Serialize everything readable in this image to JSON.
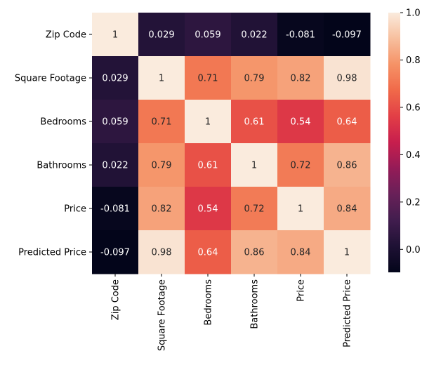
{
  "chart_data": {
    "type": "heatmap",
    "title": "",
    "rows": [
      "Zip Code",
      "Square Footage",
      "Bedrooms",
      "Bathrooms",
      "Price",
      "Predicted Price"
    ],
    "columns": [
      "Zip Code",
      "Square Footage",
      "Bedrooms",
      "Bathrooms",
      "Price",
      "Predicted Price"
    ],
    "values": [
      [
        1,
        0.029,
        0.059,
        0.022,
        -0.081,
        -0.097
      ],
      [
        0.029,
        1,
        0.71,
        0.79,
        0.82,
        0.98
      ],
      [
        0.059,
        0.71,
        1,
        0.61,
        0.54,
        0.64
      ],
      [
        0.022,
        0.79,
        0.61,
        1,
        0.72,
        0.86
      ],
      [
        -0.081,
        0.82,
        0.54,
        0.72,
        1,
        0.84
      ],
      [
        -0.097,
        0.98,
        0.64,
        0.86,
        0.84,
        1
      ]
    ],
    "labels": [
      [
        "1",
        "0.029",
        "0.059",
        "0.022",
        "-0.081",
        "-0.097"
      ],
      [
        "0.029",
        "1",
        "0.71",
        "0.79",
        "0.82",
        "0.98"
      ],
      [
        "0.059",
        "0.71",
        "1",
        "0.61",
        "0.54",
        "0.64"
      ],
      [
        "0.022",
        "0.79",
        "0.61",
        "1",
        "0.72",
        "0.86"
      ],
      [
        "-0.081",
        "0.82",
        "0.54",
        "0.72",
        "1",
        "0.84"
      ],
      [
        "-0.097",
        "0.98",
        "0.64",
        "0.86",
        "0.84",
        "1"
      ]
    ],
    "colorbar": {
      "colormap": "rocket",
      "vmin": -0.097,
      "vmax": 1,
      "ticks": [
        0.0,
        0.2,
        0.4,
        0.6,
        0.8,
        1.0
      ],
      "tick_labels": [
        "0.0",
        "0.2",
        "0.4",
        "0.6",
        "0.8",
        "1.0"
      ]
    }
  }
}
